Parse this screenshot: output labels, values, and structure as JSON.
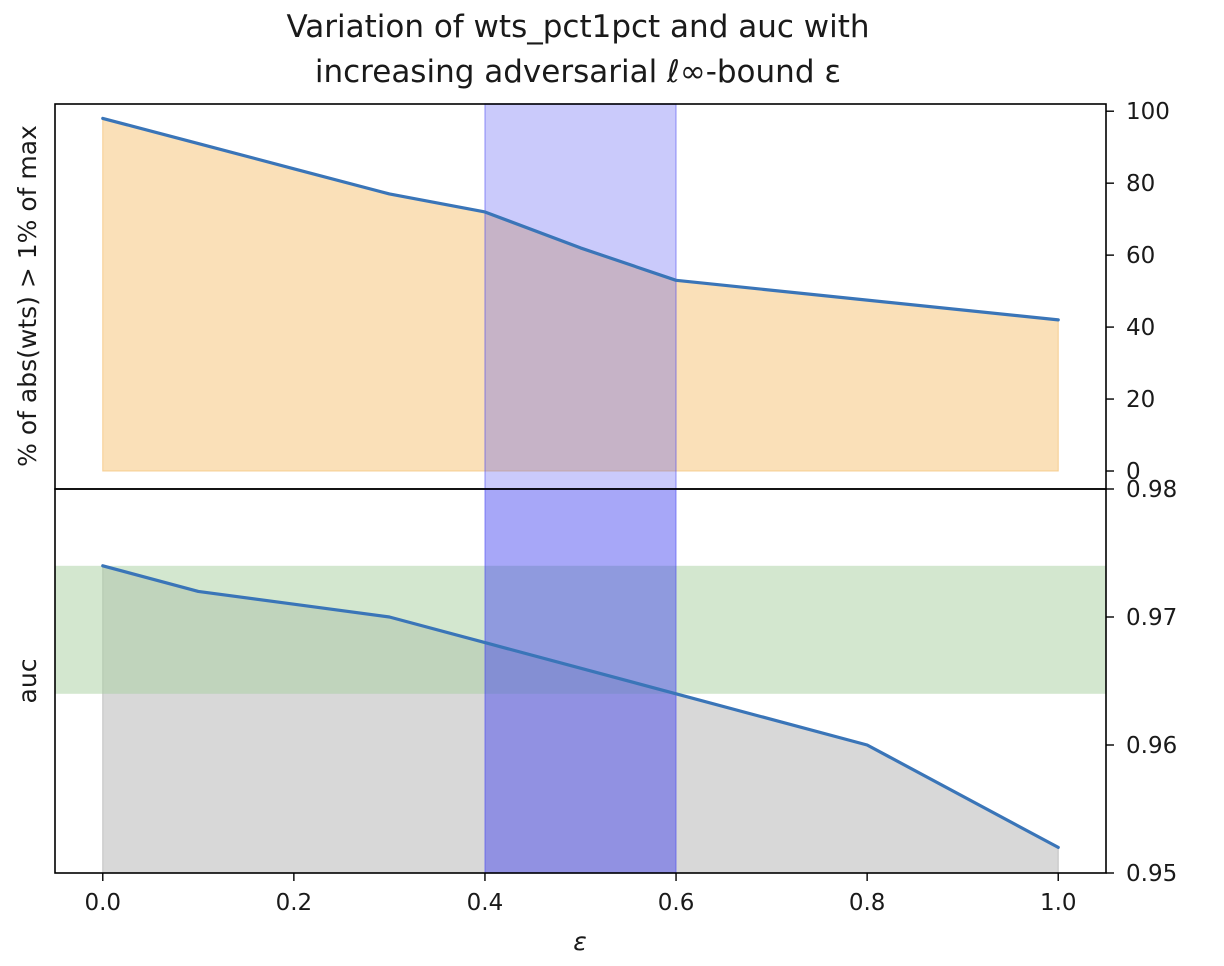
{
  "chart_data": {
    "type": "area",
    "title_lines": [
      "Variation of wts_pct1pct and auc with",
      "increasing adversarial ℓ∞-bound ε"
    ],
    "xlabel": "ε",
    "x_ticks": [
      "0.0",
      "0.2",
      "0.4",
      "0.6",
      "0.8",
      "1.0"
    ],
    "xlim": [
      -0.05,
      1.05
    ],
    "highlight_band_x": [
      0.4,
      0.6
    ],
    "colors": {
      "line": "#3a75b8",
      "top_fill": "#f5c77e",
      "bottom_fill": "#b8b8b8",
      "green_band": "#a8d0a0",
      "blue_band": "#3c3cf0"
    },
    "panels": [
      {
        "ylabel": "% of abs(wts) > 1% of max",
        "ylim": [
          -5,
          102
        ],
        "y_ticks": [
          "0",
          "20",
          "40",
          "60",
          "80",
          "100"
        ],
        "series": [
          {
            "x": [
              0.0,
              0.1,
              0.2,
              0.3,
              0.4,
              0.5,
              0.6,
              0.8,
              1.0
            ],
            "values": [
              98,
              91,
              84,
              77,
              72,
              62,
              53,
              47.5,
              42
            ]
          }
        ]
      },
      {
        "ylabel": "auc",
        "ylim": [
          0.95,
          0.98
        ],
        "y_ticks": [
          "0.95",
          "0.96",
          "0.97",
          "0.98"
        ],
        "green_band_y": [
          0.964,
          0.974
        ],
        "series": [
          {
            "x": [
              0.0,
              0.1,
              0.2,
              0.3,
              0.4,
              0.5,
              0.6,
              0.8,
              1.0
            ],
            "values": [
              0.974,
              0.972,
              0.971,
              0.97,
              0.968,
              0.966,
              0.964,
              0.96,
              0.952
            ]
          }
        ]
      }
    ]
  }
}
